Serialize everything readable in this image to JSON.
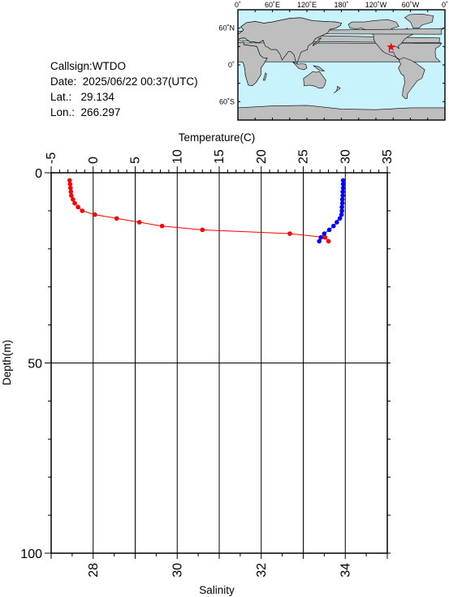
{
  "info": {
    "callsign": "Callsign:WTDO",
    "date_label": "Date:",
    "date_value": "2025/06/22 00:37(UTC)",
    "lat_label": "Lat.:",
    "lat_value": "29.134",
    "lon_label": "Lon.:",
    "lon_value": "266.297"
  },
  "map": {
    "top_labels": [
      "0˚",
      "60˚E",
      "120˚E",
      "180˚",
      "120˚W",
      "60˚W",
      "0˚"
    ],
    "left_labels": [
      "60˚N",
      "0˚",
      "60˚S"
    ],
    "ocean_color": "#c8f2fc",
    "land_color": "#bebebe",
    "marker_color": "#ff0000",
    "marker_icon": "star-icon"
  },
  "chart_data": {
    "type": "line",
    "x_top": {
      "label": "Temperature(C)",
      "ticks": [
        -5,
        0,
        5,
        10,
        15,
        20,
        25,
        30,
        35
      ],
      "range": [
        -5,
        35
      ]
    },
    "x_bottom": {
      "label": "Salinity",
      "ticks": [
        28,
        30,
        32,
        34
      ],
      "range": [
        27,
        35
      ]
    },
    "y": {
      "label": "Depth(m)",
      "ticks": [
        0,
        50,
        100
      ],
      "range": [
        0,
        100
      ],
      "inverted": true
    },
    "grid": true,
    "series": [
      {
        "axis": "temperature",
        "color": "#ff0000",
        "points": [
          [
            -2.8,
            2
          ],
          [
            -2.75,
            3
          ],
          [
            -2.7,
            4
          ],
          [
            -2.65,
            5
          ],
          [
            -2.6,
            6
          ],
          [
            -2.4,
            7
          ],
          [
            -2.2,
            8
          ],
          [
            -1.8,
            9
          ],
          [
            -1.3,
            10
          ],
          [
            0.2,
            11
          ],
          [
            2.8,
            12
          ],
          [
            5.5,
            13
          ],
          [
            8.2,
            14
          ],
          [
            13.0,
            15
          ],
          [
            23.4,
            16
          ],
          [
            27.6,
            17
          ],
          [
            28.0,
            18
          ]
        ]
      },
      {
        "axis": "salinity",
        "color": "#0000ff",
        "points": [
          [
            33.95,
            2
          ],
          [
            33.95,
            3
          ],
          [
            33.95,
            4
          ],
          [
            33.94,
            5
          ],
          [
            33.94,
            6
          ],
          [
            33.93,
            7
          ],
          [
            33.93,
            8
          ],
          [
            33.92,
            9
          ],
          [
            33.92,
            10
          ],
          [
            33.91,
            11
          ],
          [
            33.87,
            12
          ],
          [
            33.8,
            13
          ],
          [
            33.72,
            14
          ],
          [
            33.62,
            15
          ],
          [
            33.5,
            16
          ],
          [
            33.42,
            17
          ],
          [
            33.38,
            18
          ]
        ]
      }
    ]
  }
}
